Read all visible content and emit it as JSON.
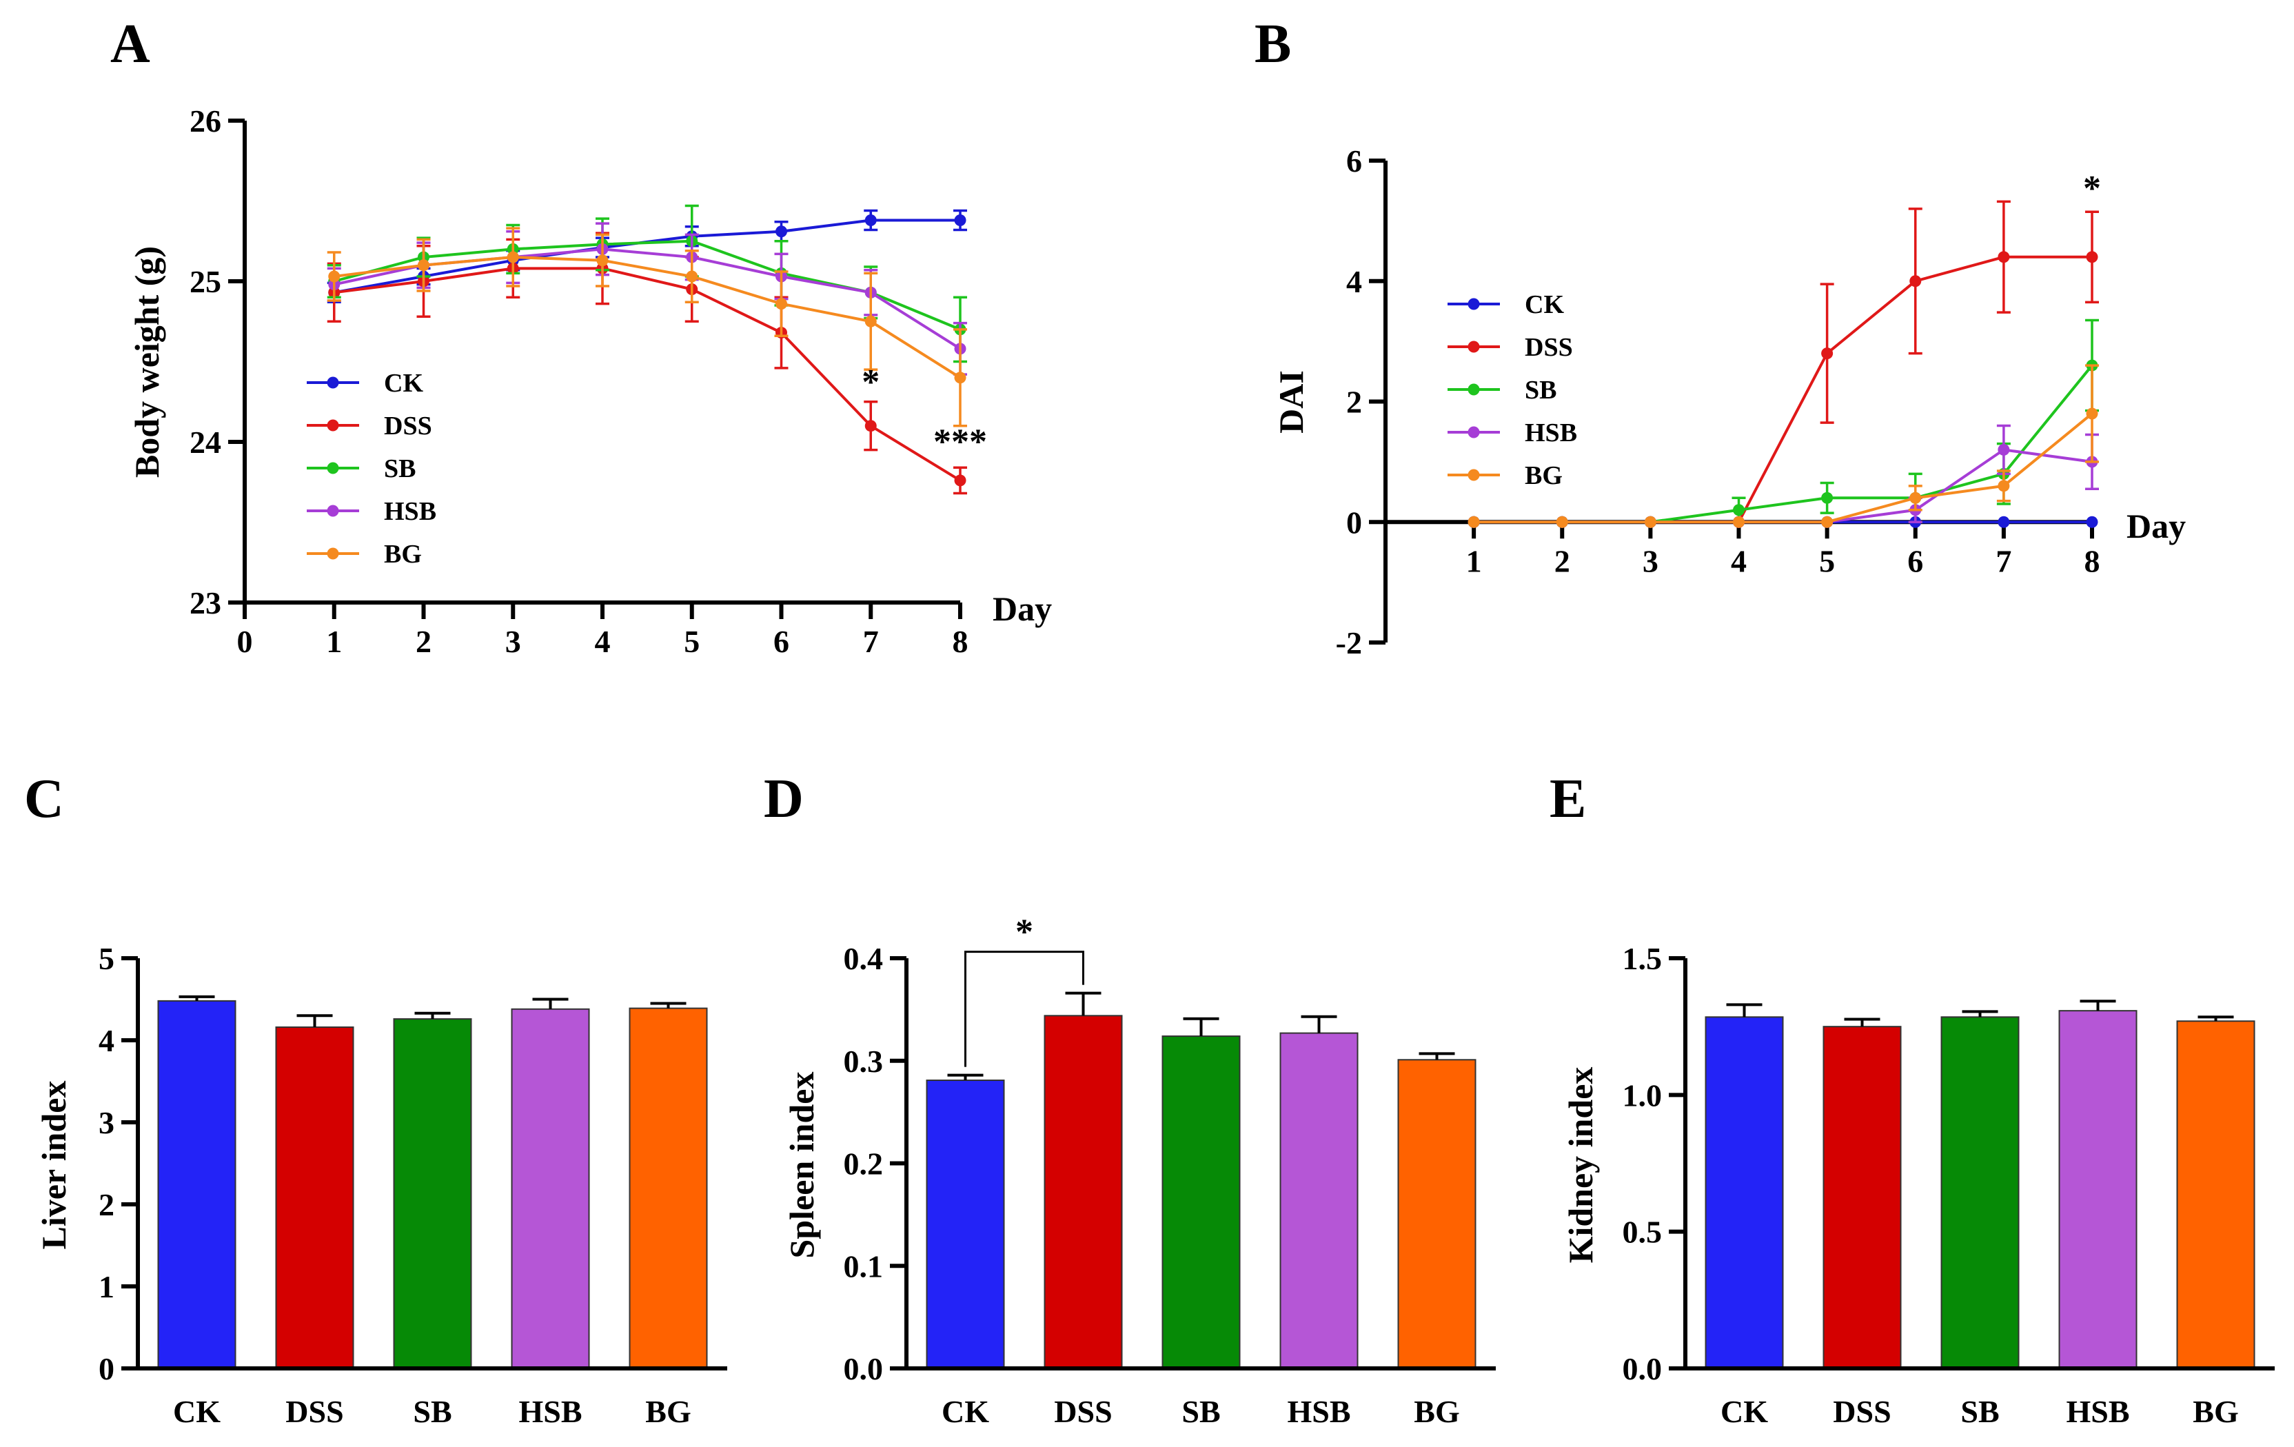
{
  "chart_data": [
    {
      "id": "A",
      "panel_label": "A",
      "type": "line",
      "ylabel": "Body weight (g)",
      "xlabel": "Day",
      "ylim": [
        23,
        26
      ],
      "xlim": [
        0,
        8
      ],
      "yticks": [
        "23",
        "24",
        "25",
        "26"
      ],
      "xticks": [
        "0",
        "1",
        "2",
        "3",
        "4",
        "5",
        "6",
        "7",
        "8"
      ],
      "x": [
        1,
        2,
        3,
        4,
        5,
        6,
        7,
        8
      ],
      "series": [
        {
          "name": "CK",
          "color": "#1a1ad6",
          "values": [
            24.93,
            25.03,
            25.13,
            25.21,
            25.28,
            25.31,
            25.38,
            25.38
          ],
          "err": [
            0.06,
            0.05,
            0.06,
            0.06,
            0.06,
            0.06,
            0.06,
            0.06
          ]
        },
        {
          "name": "DSS",
          "color": "#e01818",
          "values": [
            24.93,
            25.0,
            25.08,
            25.08,
            24.95,
            24.68,
            24.1,
            23.76
          ],
          "err": [
            0.18,
            0.22,
            0.18,
            0.22,
            0.2,
            0.22,
            0.15,
            0.08
          ]
        },
        {
          "name": "SB",
          "color": "#1ec41e",
          "values": [
            25.0,
            25.15,
            25.2,
            25.23,
            25.25,
            25.05,
            24.93,
            24.7
          ],
          "err": [
            0.1,
            0.12,
            0.15,
            0.16,
            0.22,
            0.2,
            0.16,
            0.2
          ]
        },
        {
          "name": "HSB",
          "color": "#a63dd6",
          "values": [
            24.98,
            25.1,
            25.15,
            25.2,
            25.15,
            25.03,
            24.93,
            24.58
          ],
          "err": [
            0.1,
            0.14,
            0.16,
            0.16,
            0.14,
            0.14,
            0.14,
            0.16
          ]
        },
        {
          "name": "BG",
          "color": "#f58a1f",
          "values": [
            25.03,
            25.1,
            25.15,
            25.13,
            25.03,
            24.86,
            24.75,
            24.4
          ],
          "err": [
            0.15,
            0.16,
            0.18,
            0.16,
            0.16,
            0.2,
            0.3,
            0.3
          ]
        }
      ],
      "legend": [
        "CK",
        "DSS",
        "SB",
        "HSB",
        "BG"
      ],
      "annotations": [
        {
          "text": "*",
          "x": 7,
          "y": 24.3
        },
        {
          "text": "***",
          "x": 8,
          "y": 23.93
        }
      ]
    },
    {
      "id": "B",
      "panel_label": "B",
      "type": "line",
      "ylabel": "DAI",
      "xlabel": "Day",
      "ylim": [
        -2,
        6
      ],
      "xlim": [
        0,
        8
      ],
      "yticks": [
        "-2",
        "0",
        "2",
        "4",
        "6"
      ],
      "xticks": [
        "1",
        "2",
        "3",
        "4",
        "5",
        "6",
        "7",
        "8"
      ],
      "x": [
        1,
        2,
        3,
        4,
        5,
        6,
        7,
        8
      ],
      "series": [
        {
          "name": "CK",
          "color": "#1a1ad6",
          "values": [
            0,
            0,
            0,
            0,
            0,
            0,
            0,
            0
          ],
          "err": [
            0,
            0,
            0,
            0,
            0,
            0,
            0,
            0
          ]
        },
        {
          "name": "DSS",
          "color": "#e01818",
          "values": [
            0,
            0,
            0,
            0,
            2.8,
            4.0,
            4.4,
            4.4
          ],
          "err": [
            0,
            0,
            0,
            0,
            1.15,
            1.2,
            0.92,
            0.75
          ]
        },
        {
          "name": "SB",
          "color": "#1ec41e",
          "values": [
            0,
            0,
            0,
            0.2,
            0.4,
            0.4,
            0.8,
            2.6
          ],
          "err": [
            0,
            0,
            0,
            0.2,
            0.25,
            0.4,
            0.5,
            0.75
          ]
        },
        {
          "name": "HSB",
          "color": "#a63dd6",
          "values": [
            0,
            0,
            0,
            0,
            0,
            0.2,
            1.2,
            1.0
          ],
          "err": [
            0,
            0,
            0,
            0,
            0,
            0.2,
            0.4,
            0.45
          ]
        },
        {
          "name": "BG",
          "color": "#f58a1f",
          "values": [
            0,
            0,
            0,
            0,
            0,
            0.4,
            0.6,
            1.8
          ],
          "err": [
            0,
            0,
            0,
            0,
            0,
            0.2,
            0.25,
            0.8
          ]
        }
      ],
      "legend": [
        "CK",
        "DSS",
        "SB",
        "HSB",
        "BG"
      ],
      "annotations": [
        {
          "text": "*",
          "x": 8,
          "y": 5.35
        }
      ]
    },
    {
      "id": "C",
      "panel_label": "C",
      "type": "bar",
      "ylabel": "Liver index",
      "ylim": [
        0,
        5
      ],
      "yticks": [
        "0",
        "1",
        "2",
        "3",
        "4",
        "5"
      ],
      "categories": [
        "CK",
        "DSS",
        "SB",
        "HSB",
        "BG"
      ],
      "values": [
        4.48,
        4.16,
        4.26,
        4.38,
        4.39
      ],
      "err": [
        0.05,
        0.14,
        0.07,
        0.12,
        0.06
      ],
      "colors": [
        "#2323f7",
        "#d40000",
        "#068a06",
        "#b556d6",
        "#ff6200"
      ]
    },
    {
      "id": "D",
      "panel_label": "D",
      "type": "bar",
      "ylabel": "Spleen index",
      "ylim": [
        0,
        0.4
      ],
      "yticks": [
        "0.0",
        "0.1",
        "0.2",
        "0.3",
        "0.4"
      ],
      "categories": [
        "CK",
        "DSS",
        "SB",
        "HSB",
        "BG"
      ],
      "values": [
        0.281,
        0.344,
        0.324,
        0.327,
        0.301
      ],
      "err": [
        0.005,
        0.022,
        0.017,
        0.016,
        0.006
      ],
      "colors": [
        "#2323f7",
        "#d40000",
        "#068a06",
        "#b556d6",
        "#ff6200"
      ],
      "annotations": [
        {
          "text": "*",
          "between": [
            "CK",
            "DSS"
          ]
        }
      ]
    },
    {
      "id": "E",
      "panel_label": "E",
      "type": "bar",
      "ylabel": "Kidney index",
      "ylim": [
        0,
        1.5
      ],
      "yticks": [
        "0.0",
        "0.5",
        "1.0",
        "1.5"
      ],
      "categories": [
        "CK",
        "DSS",
        "SB",
        "HSB",
        "BG"
      ],
      "values": [
        1.285,
        1.25,
        1.285,
        1.308,
        1.27
      ],
      "err": [
        0.045,
        0.027,
        0.02,
        0.035,
        0.015
      ],
      "colors": [
        "#2323f7",
        "#d40000",
        "#068a06",
        "#b556d6",
        "#ff6200"
      ]
    }
  ]
}
